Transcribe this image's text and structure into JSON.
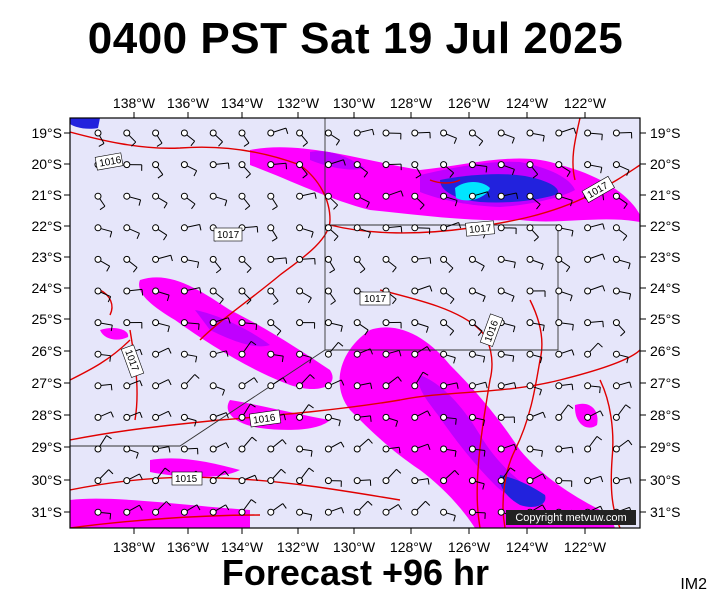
{
  "header": {
    "title": "0400 PST Sat 19 Jul 2025"
  },
  "footer": {
    "forecast": "Forecast +96 hr",
    "image_code": "IM2"
  },
  "copyright": "Copyright metvuw.com",
  "axes": {
    "longitudes": [
      "138°W",
      "136°W",
      "134°W",
      "132°W",
      "130°W",
      "128°W",
      "126°W",
      "124°W",
      "122°W"
    ],
    "latitudes": [
      "19°S",
      "20°S",
      "21°S",
      "22°S",
      "23°S",
      "24°S",
      "25°S",
      "26°S",
      "27°S",
      "28°S",
      "29°S",
      "30°S",
      "31°S"
    ]
  },
  "isobar_labels": [
    {
      "id": "a",
      "text": "1016"
    },
    {
      "id": "b",
      "text": "1017"
    },
    {
      "id": "c",
      "text": "1017"
    },
    {
      "id": "d",
      "text": "1017"
    },
    {
      "id": "e",
      "text": "1016"
    },
    {
      "id": "f",
      "text": "1017"
    },
    {
      "id": "g",
      "text": "1016"
    },
    {
      "id": "h",
      "text": "1015"
    },
    {
      "id": "i",
      "text": "1017"
    }
  ],
  "colors": {
    "ocean": "#e6e6fa",
    "isobar": "#e00000",
    "rain_light": "#ff00ff",
    "rain_mid": "#c000ff",
    "rain_heavy": "#2222dd",
    "rain_extreme": "#00e5ff"
  }
}
